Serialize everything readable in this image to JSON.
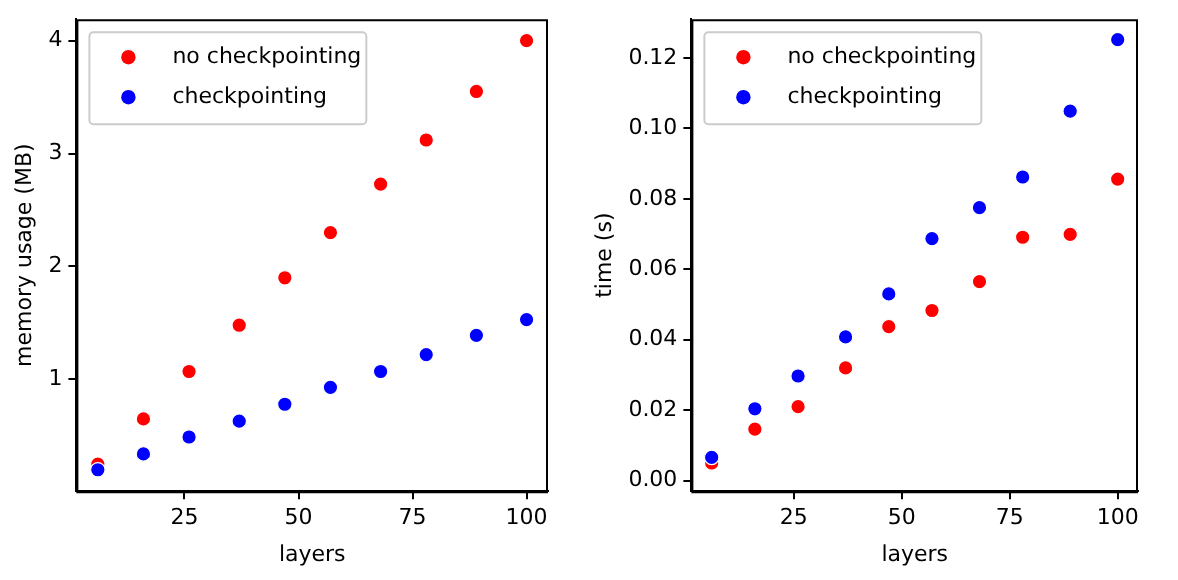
{
  "chart_data": [
    {
      "type": "scatter",
      "xlabel": "layers",
      "ylabel": "memory usage (MB)",
      "x": [
        6,
        16,
        26,
        37,
        47,
        57,
        68,
        78,
        89,
        100
      ],
      "xlim": [
        1.3,
        104.7
      ],
      "xticks": [
        25,
        50,
        75,
        100
      ],
      "ylim": [
        0.01,
        4.19
      ],
      "yticks": [
        1,
        2,
        3,
        4
      ],
      "grid": false,
      "legend": "top left",
      "marker": "circle",
      "series": [
        {
          "name": "no checkpointing",
          "color": "#ff0000",
          "values": [
            0.25,
            0.65,
            1.07,
            1.48,
            1.9,
            2.3,
            2.73,
            3.12,
            3.55,
            4.0
          ]
        },
        {
          "name": "checkpointing",
          "color": "#0000ff",
          "values": [
            0.2,
            0.34,
            0.49,
            0.63,
            0.78,
            0.93,
            1.07,
            1.22,
            1.39,
            1.53
          ]
        }
      ]
    },
    {
      "type": "scatter",
      "xlabel": "layers",
      "ylabel": "time (s)",
      "x": [
        6,
        16,
        26,
        37,
        47,
        57,
        68,
        78,
        89,
        100
      ],
      "xlim": [
        1.3,
        104.7
      ],
      "xticks": [
        25,
        50,
        75,
        100
      ],
      "ylim": [
        -0.003,
        0.131
      ],
      "yticks": [
        {
          "value": 0,
          "label": "0.00"
        },
        {
          "value": 0.02,
          "label": "0.02"
        },
        {
          "value": 0.04,
          "label": "0.04"
        },
        {
          "value": 0.06,
          "label": "0.06"
        },
        {
          "value": 0.08,
          "label": "0.08"
        },
        {
          "value": 0.1,
          "label": "0.10"
        },
        {
          "value": 0.12,
          "label": "0.12"
        }
      ],
      "grid": false,
      "legend": "top left",
      "marker": "circle",
      "series": [
        {
          "name": "no checkpointing",
          "color": "#ff0000",
          "values": [
            0.005,
            0.0146,
            0.021,
            0.032,
            0.0437,
            0.0483,
            0.0565,
            0.0691,
            0.0699,
            0.0856
          ]
        },
        {
          "name": "checkpointing",
          "color": "#0000ff",
          "values": [
            0.0066,
            0.0204,
            0.0297,
            0.0408,
            0.053,
            0.0687,
            0.0775,
            0.0862,
            0.1049,
            0.1252
          ]
        }
      ]
    }
  ]
}
